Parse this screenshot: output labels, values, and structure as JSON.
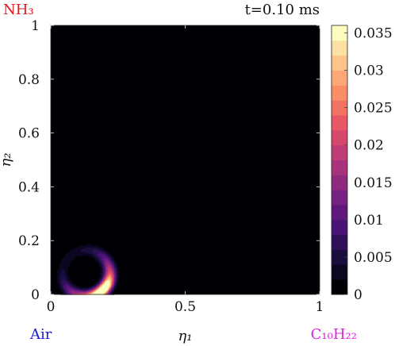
{
  "corner_labels": {
    "top_left": "NH₃",
    "top_left_color": "#e8141e",
    "bottom_left": "Air",
    "bottom_left_color": "#1b1bd6",
    "bottom_right": "C₁₀H₂₂",
    "bottom_right_color": "#e81ee0"
  },
  "time_label": "t=0.10 ms",
  "chart_data": {
    "type": "heatmap",
    "xlabel": "η₁",
    "ylabel": "η₂",
    "xlim": [
      0,
      1
    ],
    "ylim": [
      0,
      1
    ],
    "x_ticks": [
      "0",
      "0.5",
      "1"
    ],
    "y_ticks": [
      "0",
      "0.2",
      "0.4",
      "0.6",
      "0.8",
      "1"
    ],
    "colorbar": {
      "range": [
        0,
        0.036
      ],
      "ticks": [
        "0",
        "0.005",
        "0.01",
        "0.015",
        "0.02",
        "0.025",
        "0.03",
        "0.035"
      ],
      "levels": 18,
      "colormap": "magma"
    },
    "background_value": 0,
    "feature": {
      "description_region": "crescent near origin",
      "max_value": 0.036,
      "x_range": [
        0.0,
        0.26
      ],
      "y_range": [
        0.0,
        0.16
      ]
    }
  }
}
